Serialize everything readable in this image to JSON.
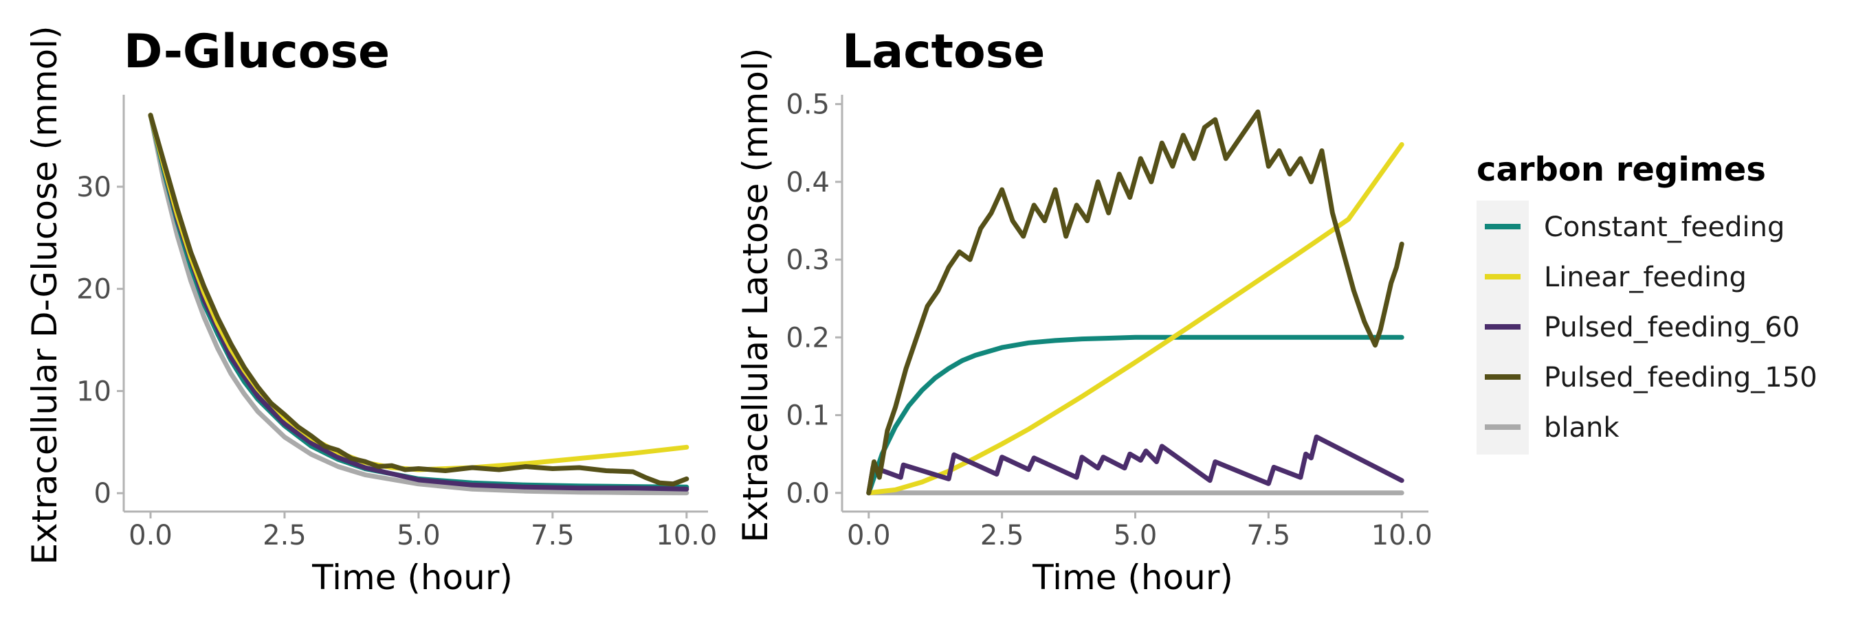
{
  "chart_data": [
    {
      "type": "line",
      "title": "D-Glucose",
      "xlabel": "Time (hour)",
      "ylabel": "Extracellular D-Glucose (mmol)",
      "xlim": [
        -0.5,
        10.4
      ],
      "ylim": [
        -1.8,
        39.0
      ],
      "x_ticks": [
        0.0,
        2.5,
        5.0,
        7.5,
        10.0
      ],
      "x_tick_labels": [
        "0.0",
        "2.5",
        "5.0",
        "7.5",
        "10.0"
      ],
      "y_ticks": [
        0,
        10,
        20,
        30
      ],
      "y_tick_labels": [
        "0",
        "10",
        "20",
        "30"
      ],
      "grid": false,
      "series": [
        {
          "name": "blank",
          "color": "#aaaaaa",
          "x": [
            0,
            0.25,
            0.5,
            0.75,
            1,
            1.25,
            1.5,
            1.75,
            2,
            2.5,
            3,
            3.5,
            4,
            5,
            6,
            7,
            8,
            9,
            10
          ],
          "y": [
            37,
            30.5,
            25.2,
            20.8,
            17.2,
            14.2,
            11.7,
            9.7,
            8.0,
            5.5,
            3.8,
            2.6,
            1.8,
            0.9,
            0.4,
            0.2,
            0.1,
            0.05,
            0.03
          ]
        },
        {
          "name": "Constant_feeding",
          "color": "#11877b",
          "x": [
            0,
            0.25,
            0.5,
            0.75,
            1,
            1.25,
            1.5,
            1.75,
            2,
            2.5,
            3,
            3.5,
            4,
            5,
            6,
            7,
            8,
            9,
            10
          ],
          "y": [
            37,
            31.5,
            26.5,
            22.2,
            18.5,
            15.6,
            13.0,
            10.9,
            9.2,
            6.6,
            4.6,
            3.3,
            2.4,
            1.4,
            1.0,
            0.8,
            0.7,
            0.65,
            0.6
          ]
        },
        {
          "name": "Pulsed_feeding_60",
          "color": "#4b2d6b",
          "x": [
            0,
            0.5,
            1,
            1.5,
            2,
            2.5,
            3,
            3.5,
            4,
            5,
            6,
            7,
            8,
            9,
            10
          ],
          "y": [
            37,
            26.8,
            18.9,
            13.3,
            9.5,
            6.8,
            4.9,
            3.5,
            2.5,
            1.3,
            0.8,
            0.6,
            0.5,
            0.5,
            0.4
          ]
        },
        {
          "name": "Linear_feeding",
          "color": "#e6d821",
          "x": [
            0,
            0.25,
            0.5,
            0.75,
            1,
            1.25,
            1.5,
            1.75,
            2,
            2.5,
            3,
            3.5,
            4,
            4.5,
            5,
            6,
            7,
            8,
            9,
            10
          ],
          "y": [
            37,
            32.0,
            27.2,
            23.1,
            19.6,
            16.6,
            14.1,
            12.0,
            10.2,
            7.4,
            5.4,
            4.0,
            3.0,
            2.5,
            2.3,
            2.5,
            2.9,
            3.4,
            3.9,
            4.5
          ]
        },
        {
          "name": "Pulsed_feeding_150",
          "color": "#555018",
          "x": [
            0,
            0.25,
            0.5,
            0.75,
            1,
            1.25,
            1.5,
            1.75,
            2,
            2.25,
            2.5,
            2.75,
            3,
            3.25,
            3.5,
            3.75,
            4,
            4.25,
            4.5,
            4.75,
            5,
            5.5,
            6,
            6.5,
            7,
            7.5,
            8,
            8.5,
            9,
            9.25,
            9.5,
            9.75,
            10
          ],
          "y": [
            37,
            32.4,
            27.8,
            23.6,
            20.2,
            17.2,
            14.6,
            12.3,
            10.4,
            8.8,
            7.7,
            6.5,
            5.6,
            4.6,
            4.2,
            3.4,
            3.1,
            2.6,
            2.7,
            2.3,
            2.4,
            2.2,
            2.5,
            2.3,
            2.6,
            2.4,
            2.5,
            2.2,
            2.1,
            1.5,
            1.0,
            0.9,
            1.4
          ]
        }
      ]
    },
    {
      "type": "line",
      "title": "Lactose",
      "xlabel": "Time (hour)",
      "ylabel": "Extracellular Lactose (mmol)",
      "xlim": [
        -0.5,
        10.5
      ],
      "ylim": [
        -0.024,
        0.512
      ],
      "x_ticks": [
        0.0,
        2.5,
        5.0,
        7.5,
        10.0
      ],
      "x_tick_labels": [
        "0.0",
        "2.5",
        "5.0",
        "7.5",
        "10.0"
      ],
      "y_ticks": [
        0.0,
        0.1,
        0.2,
        0.3,
        0.4,
        0.5
      ],
      "y_tick_labels": [
        "0.0",
        "0.1",
        "0.2",
        "0.3",
        "0.4",
        "0.5"
      ],
      "grid": false,
      "series": [
        {
          "name": "blank",
          "color": "#aaaaaa",
          "x": [
            0,
            10
          ],
          "y": [
            0,
            0
          ]
        },
        {
          "name": "Constant_feeding",
          "color": "#11877b",
          "x": [
            0,
            0.25,
            0.5,
            0.75,
            1,
            1.25,
            1.5,
            1.75,
            2,
            2.5,
            3,
            3.5,
            4,
            4.5,
            5,
            6,
            7,
            8,
            9,
            10
          ],
          "y": [
            0,
            0.05,
            0.085,
            0.112,
            0.132,
            0.148,
            0.16,
            0.17,
            0.177,
            0.187,
            0.193,
            0.196,
            0.198,
            0.199,
            0.2,
            0.2,
            0.2,
            0.2,
            0.2,
            0.2
          ]
        },
        {
          "name": "Linear_feeding",
          "color": "#e6d821",
          "x": [
            0,
            0.5,
            1,
            1.5,
            2,
            2.5,
            3,
            4,
            5,
            6,
            7,
            8,
            9,
            10
          ],
          "y": [
            0,
            0.004,
            0.014,
            0.028,
            0.045,
            0.063,
            0.082,
            0.124,
            0.168,
            0.213,
            0.259,
            0.305,
            0.352,
            0.448
          ]
        },
        {
          "name": "Pulsed_feeding_60",
          "color": "#4b2d6b",
          "x": [
            0,
            0.08,
            0.6,
            0.65,
            1.5,
            1.6,
            2.4,
            2.5,
            3.0,
            3.1,
            3.9,
            4.0,
            4.3,
            4.4,
            4.8,
            4.9,
            5.1,
            5.2,
            5.4,
            5.5,
            6.4,
            6.5,
            7.5,
            7.6,
            8.1,
            8.2,
            8.3,
            8.4,
            10
          ],
          "y": [
            0,
            0.033,
            0.02,
            0.036,
            0.018,
            0.049,
            0.024,
            0.046,
            0.03,
            0.045,
            0.02,
            0.046,
            0.032,
            0.046,
            0.032,
            0.05,
            0.042,
            0.054,
            0.04,
            0.06,
            0.016,
            0.04,
            0.012,
            0.033,
            0.02,
            0.05,
            0.045,
            0.072,
            0.016
          ]
        },
        {
          "name": "Pulsed_feeding_150",
          "color": "#555018",
          "x": [
            0,
            0.1,
            0.2,
            0.35,
            0.5,
            0.7,
            0.9,
            1.1,
            1.3,
            1.5,
            1.7,
            1.9,
            2.1,
            2.3,
            2.5,
            2.7,
            2.9,
            3.1,
            3.3,
            3.5,
            3.7,
            3.9,
            4.1,
            4.3,
            4.5,
            4.7,
            4.9,
            5.1,
            5.3,
            5.5,
            5.7,
            5.9,
            6.1,
            6.3,
            6.5,
            6.7,
            6.9,
            7.1,
            7.3,
            7.5,
            7.7,
            7.9,
            8.1,
            8.3,
            8.5,
            8.7,
            8.9,
            9.1,
            9.3,
            9.5,
            9.6,
            9.7,
            9.8,
            9.9,
            10
          ],
          "y": [
            0,
            0.04,
            0.02,
            0.08,
            0.11,
            0.16,
            0.2,
            0.24,
            0.26,
            0.29,
            0.31,
            0.3,
            0.34,
            0.36,
            0.39,
            0.35,
            0.33,
            0.37,
            0.35,
            0.39,
            0.33,
            0.37,
            0.35,
            0.4,
            0.36,
            0.41,
            0.38,
            0.43,
            0.4,
            0.45,
            0.42,
            0.46,
            0.43,
            0.47,
            0.48,
            0.43,
            0.45,
            0.47,
            0.49,
            0.42,
            0.44,
            0.41,
            0.43,
            0.4,
            0.44,
            0.36,
            0.31,
            0.26,
            0.22,
            0.19,
            0.21,
            0.24,
            0.27,
            0.29,
            0.32
          ]
        }
      ]
    }
  ],
  "legend": {
    "title": "carbon regimes",
    "placement": "right",
    "entries": [
      {
        "label": "Constant_feeding",
        "color": "#11877b"
      },
      {
        "label": "Linear_feeding",
        "color": "#e6d821"
      },
      {
        "label": "Pulsed_feeding_60",
        "color": "#4b2d6b"
      },
      {
        "label": "Pulsed_feeding_150",
        "color": "#555018"
      },
      {
        "label": "blank",
        "color": "#aaaaaa"
      }
    ]
  }
}
